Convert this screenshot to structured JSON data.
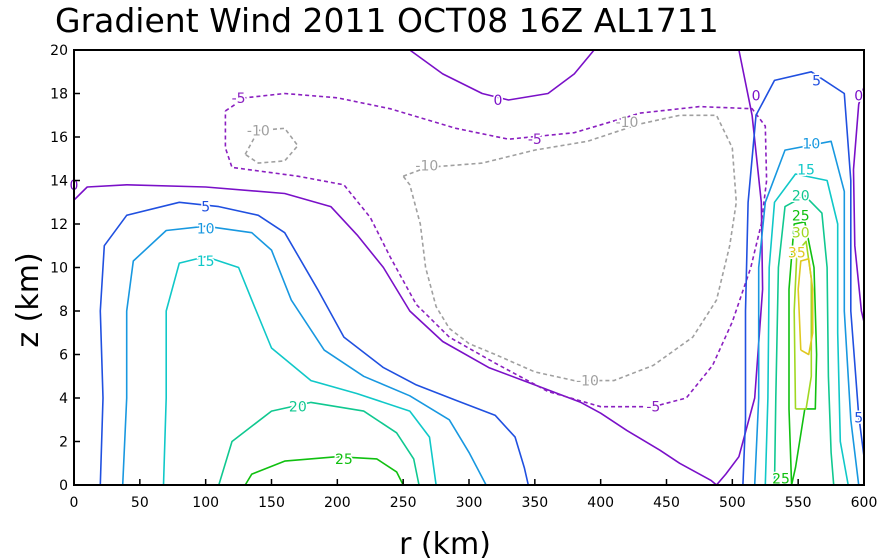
{
  "chart_data": {
    "type": "contour",
    "title": "Gradient Wind 2011 OCT08 16Z  AL1711",
    "xlabel": "r (km)",
    "ylabel": "z (km)",
    "xlim": [
      0,
      600
    ],
    "ylim": [
      0,
      20
    ],
    "x_ticks": [
      "0",
      "50",
      "100",
      "150",
      "200",
      "250",
      "300",
      "350",
      "400",
      "450",
      "500",
      "550",
      "600"
    ],
    "y_ticks": [
      "0",
      "2",
      "4",
      "6",
      "8",
      "10",
      "12",
      "14",
      "16",
      "18",
      "20"
    ],
    "grid": false,
    "contour_levels": [
      -10,
      -5,
      0,
      5,
      10,
      15,
      20,
      25,
      30,
      35
    ],
    "level_colors": {
      "-10": "#a0a0a0",
      "-5": "#8a1fc0",
      "0": "#7a10c8",
      "5": "#2050e0",
      "10": "#1898e0",
      "15": "#10c8c8",
      "20": "#10c890",
      "25": "#10c010",
      "30": "#a0d820",
      "35": "#e0c820"
    },
    "labels": [
      {
        "text": "0",
        "r": 0,
        "z": 13.8,
        "level": 0
      },
      {
        "text": "0",
        "r": 322,
        "z": 17.7,
        "level": 0
      },
      {
        "text": "0",
        "r": 518,
        "z": 17.9,
        "level": 0
      },
      {
        "text": "0",
        "r": 596,
        "z": 17.9,
        "level": 0
      },
      {
        "text": "-5",
        "r": 125,
        "z": 17.8,
        "level": -5
      },
      {
        "text": "-5",
        "r": 350,
        "z": 15.9,
        "level": -5
      },
      {
        "text": "-5",
        "r": 440,
        "z": 3.6,
        "level": -5
      },
      {
        "text": "-10",
        "r": 140,
        "z": 16.3,
        "level": -10
      },
      {
        "text": "-10",
        "r": 268,
        "z": 14.7,
        "level": -10
      },
      {
        "text": "-10",
        "r": 420,
        "z": 16.7,
        "level": -10
      },
      {
        "text": "-10",
        "r": 390,
        "z": 4.8,
        "level": -10
      },
      {
        "text": "5",
        "r": 100,
        "z": 12.8,
        "level": 5
      },
      {
        "text": "5",
        "r": 564,
        "z": 18.6,
        "level": 5
      },
      {
        "text": "5",
        "r": 596,
        "z": 3.1,
        "level": 5
      },
      {
        "text": "10",
        "r": 100,
        "z": 11.8,
        "level": 10
      },
      {
        "text": "10",
        "r": 560,
        "z": 15.7,
        "level": 10
      },
      {
        "text": "15",
        "r": 100,
        "z": 10.3,
        "level": 15
      },
      {
        "text": "15",
        "r": 556,
        "z": 14.5,
        "level": 15
      },
      {
        "text": "20",
        "r": 170,
        "z": 3.6,
        "level": 20
      },
      {
        "text": "20",
        "r": 552,
        "z": 13.3,
        "level": 20
      },
      {
        "text": "25",
        "r": 205,
        "z": 1.2,
        "level": 25
      },
      {
        "text": "25",
        "r": 552,
        "z": 12.4,
        "level": 25
      },
      {
        "text": "25",
        "r": 537,
        "z": 0.3,
        "level": 25
      },
      {
        "text": "30",
        "r": 552,
        "z": 11.6,
        "level": 30
      },
      {
        "text": "35",
        "r": 549,
        "z": 10.7,
        "level": 35
      }
    ],
    "contours": [
      {
        "level": 0,
        "dashed": false,
        "points": [
          [
            0,
            13.1
          ],
          [
            10,
            13.7
          ],
          [
            40,
            13.8
          ],
          [
            100,
            13.7
          ],
          [
            160,
            13.4
          ],
          [
            195,
            12.8
          ],
          [
            215,
            11.5
          ],
          [
            235,
            10
          ],
          [
            255,
            8
          ],
          [
            280,
            6.6
          ],
          [
            315,
            5.4
          ],
          [
            350,
            4.6
          ],
          [
            385,
            3.8
          ],
          [
            400,
            3.3
          ],
          [
            420,
            2.5
          ],
          [
            445,
            1.6
          ],
          [
            460,
            1
          ],
          [
            475,
            0.5
          ],
          [
            484,
            0.2
          ],
          [
            488,
            0
          ]
        ]
      },
      {
        "level": 0,
        "dashed": false,
        "points": [
          [
            255,
            20
          ],
          [
            280,
            18.9
          ],
          [
            310,
            18
          ],
          [
            330,
            17.7
          ],
          [
            360,
            18
          ],
          [
            380,
            18.9
          ],
          [
            395,
            20
          ]
        ]
      },
      {
        "level": 0,
        "dashed": false,
        "points": [
          [
            505,
            20
          ],
          [
            515,
            17
          ],
          [
            522,
            13
          ],
          [
            523,
            9
          ],
          [
            517,
            4
          ],
          [
            505,
            1.3
          ],
          [
            495,
            0.5
          ],
          [
            488,
            0
          ]
        ]
      },
      {
        "level": 0,
        "dashed": false,
        "points": [
          [
            600,
            18.3
          ],
          [
            596,
            17.5
          ],
          [
            592,
            14.5
          ],
          [
            593,
            11
          ],
          [
            598,
            8
          ],
          [
            600,
            7.5
          ]
        ]
      },
      {
        "level": -5,
        "dashed": true,
        "points": [
          [
            115,
            17.2
          ],
          [
            130,
            17.8
          ],
          [
            160,
            18
          ],
          [
            200,
            17.8
          ],
          [
            240,
            17.3
          ],
          [
            290,
            16.4
          ],
          [
            330,
            15.9
          ],
          [
            380,
            16.2
          ],
          [
            430,
            17.1
          ],
          [
            475,
            17.4
          ],
          [
            515,
            17.3
          ],
          [
            525,
            16.5
          ],
          [
            526,
            14
          ],
          [
            522,
            12
          ],
          [
            514,
            10
          ],
          [
            500,
            7.5
          ],
          [
            485,
            5.5
          ],
          [
            465,
            4
          ],
          [
            440,
            3.6
          ],
          [
            400,
            3.6
          ],
          [
            360,
            4.3
          ],
          [
            320,
            5.6
          ],
          [
            285,
            6.8
          ],
          [
            260,
            8.3
          ],
          [
            240,
            10.5
          ],
          [
            225,
            12.3
          ],
          [
            205,
            13.8
          ],
          [
            170,
            14.2
          ],
          [
            120,
            14.6
          ],
          [
            115,
            15.5
          ],
          [
            115,
            17.2
          ]
        ]
      },
      {
        "level": -10,
        "dashed": true,
        "points": [
          [
            130,
            15.2
          ],
          [
            140,
            16.3
          ],
          [
            160,
            16.4
          ],
          [
            170,
            15.6
          ],
          [
            160,
            14.9
          ],
          [
            140,
            14.8
          ],
          [
            130,
            15.2
          ]
        ]
      },
      {
        "level": -10,
        "dashed": true,
        "points": [
          [
            250,
            14.2
          ],
          [
            268,
            14.6
          ],
          [
            310,
            14.8
          ],
          [
            350,
            15.4
          ],
          [
            390,
            15.8
          ],
          [
            430,
            16.6
          ],
          [
            460,
            17
          ],
          [
            488,
            17
          ],
          [
            500,
            15.5
          ],
          [
            503,
            13
          ],
          [
            498,
            11
          ],
          [
            488,
            8.5
          ],
          [
            470,
            6.8
          ],
          [
            440,
            5.5
          ],
          [
            410,
            4.8
          ],
          [
            380,
            4.8
          ],
          [
            350,
            5.2
          ],
          [
            320,
            6
          ],
          [
            300,
            6.5
          ],
          [
            285,
            7.2
          ],
          [
            275,
            8.2
          ],
          [
            267,
            10
          ],
          [
            263,
            12
          ],
          [
            255,
            13.8
          ],
          [
            250,
            14.2
          ]
        ]
      },
      {
        "level": 5,
        "dashed": false,
        "points": [
          [
            20,
            0
          ],
          [
            22,
            4
          ],
          [
            20,
            8
          ],
          [
            23,
            11
          ],
          [
            40,
            12.4
          ],
          [
            80,
            13
          ],
          [
            110,
            12.8
          ],
          [
            140,
            12.4
          ],
          [
            160,
            11.6
          ],
          [
            185,
            9
          ],
          [
            205,
            6.8
          ],
          [
            235,
            5.4
          ],
          [
            260,
            4.6
          ],
          [
            290,
            3.9
          ],
          [
            320,
            3.2
          ],
          [
            335,
            2.2
          ],
          [
            342,
            0.8
          ],
          [
            345,
            0
          ]
        ]
      },
      {
        "level": 5,
        "dashed": false,
        "points": [
          [
            508,
            0
          ],
          [
            510,
            3
          ],
          [
            510,
            8
          ],
          [
            512,
            13
          ],
          [
            518,
            17
          ],
          [
            532,
            18.6
          ],
          [
            560,
            19
          ],
          [
            585,
            18
          ],
          [
            590,
            14
          ],
          [
            590,
            8
          ],
          [
            596,
            3.2
          ],
          [
            600,
            1.3
          ]
        ]
      },
      {
        "level": 10,
        "dashed": false,
        "points": [
          [
            37,
            0
          ],
          [
            40,
            4
          ],
          [
            40,
            8
          ],
          [
            45,
            10.3
          ],
          [
            70,
            11.7
          ],
          [
            100,
            11.9
          ],
          [
            135,
            11.6
          ],
          [
            150,
            10.8
          ],
          [
            165,
            8.5
          ],
          [
            190,
            6.2
          ],
          [
            220,
            5
          ],
          [
            255,
            4.1
          ],
          [
            285,
            3
          ],
          [
            300,
            1.5
          ],
          [
            313,
            0
          ]
        ]
      },
      {
        "level": 10,
        "dashed": false,
        "points": [
          [
            517,
            0
          ],
          [
            520,
            4
          ],
          [
            520,
            10
          ],
          [
            525,
            13
          ],
          [
            540,
            15.4
          ],
          [
            575,
            15.8
          ],
          [
            585,
            13.5
          ],
          [
            585,
            8
          ],
          [
            590,
            3
          ],
          [
            596,
            0
          ]
        ]
      },
      {
        "level": 15,
        "dashed": false,
        "points": [
          [
            68,
            0
          ],
          [
            70,
            4
          ],
          [
            70,
            8
          ],
          [
            80,
            10.2
          ],
          [
            100,
            10.5
          ],
          [
            125,
            10
          ],
          [
            135,
            8.5
          ],
          [
            150,
            6.3
          ],
          [
            180,
            4.8
          ],
          [
            215,
            4.2
          ],
          [
            255,
            3.4
          ],
          [
            270,
            2.2
          ],
          [
            275,
            0
          ]
        ]
      },
      {
        "level": 15,
        "dashed": false,
        "points": [
          [
            525,
            0
          ],
          [
            527,
            4
          ],
          [
            528,
            10
          ],
          [
            532,
            13
          ],
          [
            548,
            14.3
          ],
          [
            572,
            14
          ],
          [
            580,
            12
          ],
          [
            580,
            7
          ],
          [
            582,
            2
          ],
          [
            588,
            0
          ]
        ]
      },
      {
        "level": 20,
        "dashed": false,
        "points": [
          [
            110,
            0
          ],
          [
            120,
            2
          ],
          [
            150,
            3.4
          ],
          [
            180,
            3.8
          ],
          [
            220,
            3.4
          ],
          [
            245,
            2.4
          ],
          [
            258,
            1.2
          ],
          [
            262,
            0
          ]
        ]
      },
      {
        "level": 20,
        "dashed": false,
        "points": [
          [
            532,
            0
          ],
          [
            533,
            4
          ],
          [
            535,
            10
          ],
          [
            540,
            12.8
          ],
          [
            555,
            13.3
          ],
          [
            568,
            12.5
          ],
          [
            572,
            10
          ],
          [
            573,
            5
          ],
          [
            575,
            1.5
          ],
          [
            577,
            0
          ]
        ]
      },
      {
        "level": 25,
        "dashed": false,
        "points": [
          [
            130,
            0
          ],
          [
            135,
            0.5
          ],
          [
            160,
            1.1
          ],
          [
            200,
            1.3
          ],
          [
            230,
            1.2
          ],
          [
            245,
            0.6
          ],
          [
            250,
            0
          ]
        ]
      },
      {
        "level": 25,
        "dashed": false,
        "points": [
          [
            545,
            0
          ],
          [
            543,
            3.5
          ],
          [
            543,
            9
          ],
          [
            547,
            12
          ],
          [
            555,
            12.1
          ],
          [
            562,
            10
          ],
          [
            564,
            6
          ],
          [
            563,
            3.5
          ],
          [
            555,
            3.5
          ],
          [
            548,
            0.8
          ],
          [
            545,
            0
          ]
        ]
      },
      {
        "level": 30,
        "dashed": false,
        "points": [
          [
            548,
            3.5
          ],
          [
            547,
            8
          ],
          [
            549,
            10.7
          ],
          [
            556,
            11.2
          ],
          [
            560,
            9.5
          ],
          [
            560,
            5
          ],
          [
            556,
            3.5
          ],
          [
            548,
            3.5
          ]
        ]
      },
      {
        "level": 35,
        "dashed": false,
        "points": [
          [
            552,
            6.2
          ],
          [
            550,
            9
          ],
          [
            552,
            10.3
          ],
          [
            558,
            10.4
          ],
          [
            561,
            9
          ],
          [
            561,
            7
          ],
          [
            558,
            6
          ],
          [
            552,
            6.2
          ]
        ]
      }
    ]
  }
}
